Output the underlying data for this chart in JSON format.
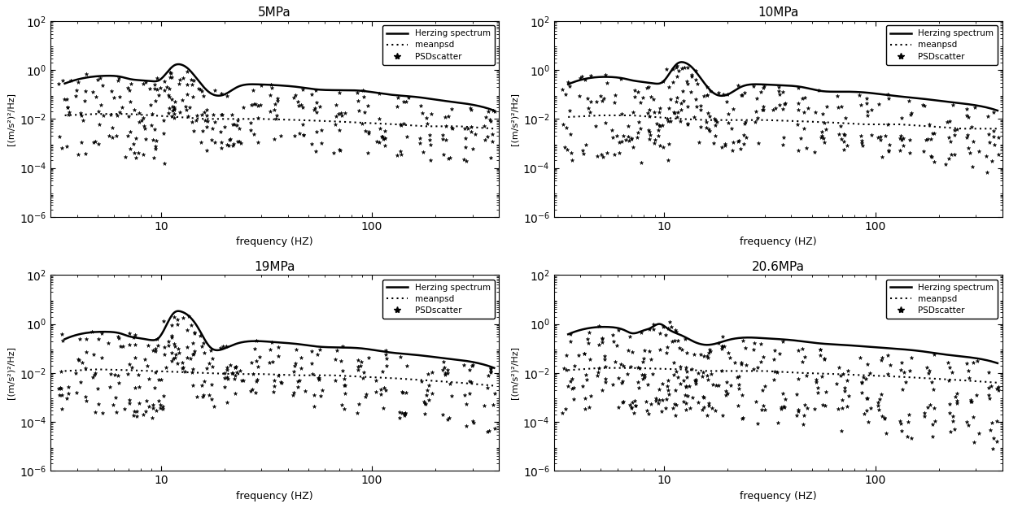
{
  "titles": [
    "5MPa",
    "10MPa",
    "19MPa",
    "20.6MPa"
  ],
  "ylabel": "[(m/s²)²/Hz]",
  "xlabel": "frequency (HZ)",
  "ylim": [
    1e-06,
    100.0
  ],
  "xlim": [
    3,
    400
  ],
  "legend_entries": [
    "Herzing spectrum",
    "meanpsd",
    "PSDscatter"
  ],
  "background_color": "#ffffff",
  "panels": [
    {
      "title": "5MPa",
      "herzing_x": [
        3.5,
        4.5,
        5.5,
        6.5,
        7.0,
        8.0,
        9.0,
        9.8,
        11.5,
        12.5,
        13.5,
        15,
        17,
        20,
        23,
        28,
        35,
        45,
        55,
        70,
        90,
        120,
        160,
        220,
        300,
        380
      ],
      "herzing_y": [
        0.28,
        0.5,
        0.58,
        0.52,
        0.44,
        0.38,
        0.35,
        0.38,
        1.5,
        1.65,
        1.1,
        0.38,
        0.12,
        0.1,
        0.2,
        0.26,
        0.24,
        0.2,
        0.16,
        0.15,
        0.14,
        0.1,
        0.08,
        0.055,
        0.038,
        0.022
      ],
      "meanpsd_x": [
        3.5,
        5,
        7,
        9,
        12,
        16,
        22,
        30,
        45,
        65,
        90,
        130,
        180,
        260,
        380
      ],
      "meanpsd_y": [
        0.014,
        0.016,
        0.016,
        0.014,
        0.012,
        0.01,
        0.01,
        0.01,
        0.009,
        0.008,
        0.007,
        0.006,
        0.005,
        0.005,
        0.004
      ],
      "scatter_freqs": [
        3.5,
        4.2,
        5.0,
        6.0,
        7.0,
        8.0,
        9.0,
        10.0,
        11.0,
        12.0,
        13.5,
        15,
        17,
        20,
        23,
        28,
        35,
        45,
        55,
        70,
        90,
        110,
        140,
        180,
        230,
        290,
        360
      ],
      "scatter_top": [
        0.5,
        0.7,
        0.8,
        0.7,
        0.6,
        0.5,
        0.45,
        0.5,
        1.8,
        2.0,
        1.3,
        0.5,
        0.15,
        0.13,
        0.28,
        0.32,
        0.28,
        0.24,
        0.2,
        0.18,
        0.16,
        0.12,
        0.09,
        0.07,
        0.05,
        0.04,
        0.028
      ],
      "scatter_bottom": [
        0.00015,
        0.0003,
        0.0003,
        0.0003,
        0.0002,
        0.0002,
        0.00015,
        0.00015,
        0.008,
        0.005,
        0.004,
        0.001,
        0.0005,
        0.0005,
        0.0008,
        0.001,
        0.0008,
        0.0006,
        0.0004,
        0.0004,
        0.0003,
        0.0003,
        0.0002,
        0.0002,
        0.00015,
        0.0001,
        8e-05
      ],
      "scatter_n": 12
    },
    {
      "title": "10MPa",
      "herzing_x": [
        3.5,
        4.5,
        5.5,
        6.5,
        7.0,
        8.0,
        9.0,
        9.8,
        11.5,
        12.5,
        13.5,
        15,
        17,
        20,
        23,
        28,
        35,
        45,
        55,
        70,
        90,
        120,
        160,
        220,
        300,
        380
      ],
      "herzing_y": [
        0.26,
        0.48,
        0.52,
        0.44,
        0.38,
        0.32,
        0.28,
        0.32,
        1.8,
        2.0,
        1.3,
        0.42,
        0.12,
        0.1,
        0.2,
        0.26,
        0.24,
        0.2,
        0.14,
        0.13,
        0.12,
        0.09,
        0.07,
        0.05,
        0.036,
        0.022
      ],
      "meanpsd_x": [
        3.5,
        5,
        7,
        9,
        12,
        16,
        22,
        30,
        45,
        65,
        90,
        130,
        180,
        260,
        380
      ],
      "meanpsd_y": [
        0.012,
        0.014,
        0.014,
        0.012,
        0.01,
        0.009,
        0.009,
        0.009,
        0.008,
        0.007,
        0.006,
        0.006,
        0.005,
        0.004,
        0.004
      ],
      "scatter_freqs": [
        3.5,
        4.2,
        5.0,
        6.0,
        7.0,
        8.0,
        9.0,
        10.0,
        11.0,
        12.0,
        13.5,
        15,
        17,
        20,
        23,
        28,
        35,
        45,
        55,
        70,
        90,
        110,
        140,
        180,
        230,
        290,
        360
      ],
      "scatter_top": [
        0.45,
        0.65,
        0.7,
        0.6,
        0.52,
        0.44,
        0.38,
        0.42,
        2.2,
        2.5,
        1.6,
        0.55,
        0.15,
        0.13,
        0.26,
        0.3,
        0.28,
        0.22,
        0.18,
        0.16,
        0.14,
        0.11,
        0.08,
        0.065,
        0.048,
        0.038,
        0.025
      ],
      "scatter_bottom": [
        0.00012,
        0.00025,
        0.00025,
        0.0002,
        0.00018,
        0.00015,
        0.00012,
        0.00012,
        0.01,
        0.008,
        0.005,
        0.0008,
        0.0004,
        0.0004,
        0.0006,
        0.0008,
        0.0006,
        0.0005,
        0.0003,
        0.0003,
        0.00025,
        0.0002,
        0.00015,
        0.00015,
        0.0001,
        8e-05,
        6e-05
      ],
      "scatter_n": 12
    },
    {
      "title": "19MPa",
      "herzing_x": [
        3.5,
        4.5,
        5.5,
        6.5,
        7.0,
        8.0,
        9.0,
        9.8,
        11.5,
        12.5,
        13.5,
        15,
        17,
        20,
        23,
        28,
        35,
        45,
        55,
        70,
        90,
        120,
        160,
        220,
        300,
        380
      ],
      "herzing_y": [
        0.24,
        0.44,
        0.48,
        0.4,
        0.32,
        0.26,
        0.22,
        0.28,
        2.8,
        3.2,
        2.2,
        0.7,
        0.12,
        0.1,
        0.16,
        0.2,
        0.18,
        0.15,
        0.12,
        0.11,
        0.1,
        0.07,
        0.055,
        0.04,
        0.028,
        0.016
      ],
      "meanpsd_x": [
        3.5,
        5,
        7,
        9,
        12,
        16,
        22,
        30,
        45,
        65,
        90,
        130,
        180,
        260,
        380
      ],
      "meanpsd_y": [
        0.012,
        0.014,
        0.013,
        0.012,
        0.011,
        0.01,
        0.009,
        0.009,
        0.008,
        0.008,
        0.007,
        0.006,
        0.005,
        0.004,
        0.003
      ],
      "scatter_freqs": [
        3.5,
        4.2,
        5.0,
        6.0,
        7.0,
        8.0,
        9.0,
        10.0,
        11.0,
        12.0,
        13.5,
        15,
        17,
        20,
        23,
        28,
        35,
        45,
        55,
        70,
        90,
        110,
        140,
        180,
        230,
        290,
        360
      ],
      "scatter_top": [
        0.42,
        0.62,
        0.65,
        0.55,
        0.44,
        0.36,
        0.3,
        0.36,
        3.5,
        4.0,
        2.8,
        0.9,
        0.15,
        0.13,
        0.22,
        0.26,
        0.22,
        0.18,
        0.15,
        0.14,
        0.12,
        0.09,
        0.07,
        0.055,
        0.04,
        0.032,
        0.02
      ],
      "scatter_bottom": [
        0.0001,
        0.0002,
        0.0002,
        0.00018,
        0.00015,
        0.00012,
        0.0001,
        0.0001,
        0.015,
        0.012,
        0.008,
        0.001,
        0.00035,
        0.00035,
        0.0005,
        0.0006,
        0.0005,
        0.0004,
        0.0003,
        0.00025,
        0.0002,
        0.00018,
        0.00014,
        0.00012,
        8e-05,
        6e-05,
        4e-05
      ],
      "scatter_n": 12
    },
    {
      "title": "20.6MPa",
      "herzing_x": [
        3.5,
        4.5,
        5.5,
        6.5,
        7.0,
        8.0,
        8.5,
        9.5,
        10.5,
        12.0,
        14.0,
        16,
        20,
        25,
        30,
        40,
        55,
        70,
        90,
        120,
        160,
        220,
        300,
        380
      ],
      "herzing_y": [
        0.38,
        0.7,
        0.75,
        0.55,
        0.42,
        0.55,
        0.65,
        1.0,
        0.6,
        0.35,
        0.18,
        0.14,
        0.22,
        0.28,
        0.26,
        0.22,
        0.16,
        0.14,
        0.12,
        0.1,
        0.08,
        0.055,
        0.04,
        0.025
      ],
      "meanpsd_x": [
        3.5,
        5,
        7,
        9,
        12,
        16,
        22,
        30,
        45,
        65,
        90,
        130,
        180,
        260,
        380
      ],
      "meanpsd_y": [
        0.013,
        0.016,
        0.016,
        0.015,
        0.014,
        0.012,
        0.012,
        0.012,
        0.01,
        0.009,
        0.008,
        0.007,
        0.006,
        0.005,
        0.004
      ],
      "scatter_freqs": [
        3.5,
        4.2,
        5.0,
        6.0,
        7.0,
        8.0,
        9.0,
        10.0,
        11.0,
        12.0,
        13.5,
        15,
        17,
        20,
        23,
        28,
        35,
        45,
        55,
        70,
        90,
        110,
        140,
        180,
        230,
        290,
        360
      ],
      "scatter_top": [
        0.6,
        1.0,
        1.1,
        0.8,
        0.6,
        0.8,
        1.3,
        1.4,
        0.9,
        0.5,
        0.25,
        0.2,
        0.3,
        0.35,
        0.32,
        0.28,
        0.22,
        0.18,
        0.15,
        0.13,
        0.11,
        0.09,
        0.07,
        0.06,
        0.045,
        0.035,
        0.022
      ],
      "scatter_bottom": [
        0.0002,
        0.0003,
        0.0003,
        0.00025,
        0.0002,
        0.0002,
        0.00018,
        0.00018,
        0.00015,
        0.00012,
        8e-05,
        8e-05,
        0.0001,
        0.00012,
        0.0001,
        8e-05,
        6e-05,
        5e-05,
        4e-05,
        3.5e-05,
        3e-05,
        2.5e-05,
        2e-05,
        1.5e-05,
        1.2e-05,
        1e-05,
        8e-06
      ],
      "scatter_n": 14
    }
  ]
}
